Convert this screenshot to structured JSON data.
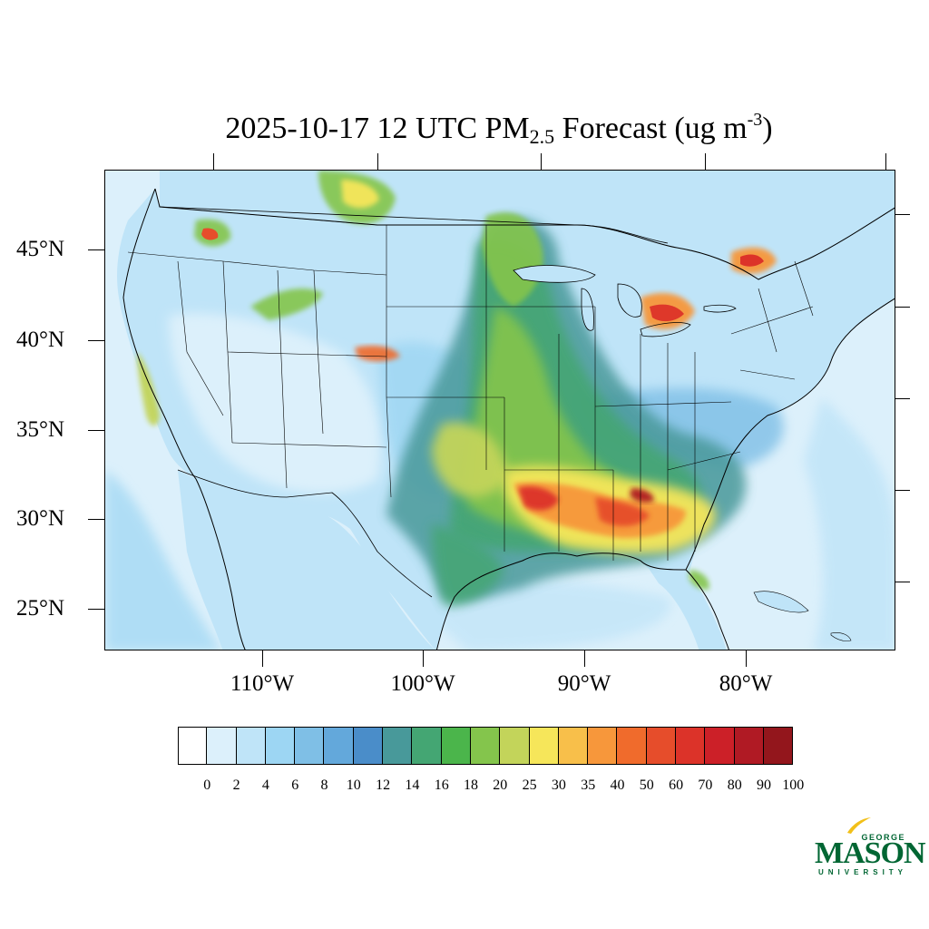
{
  "title": {
    "prefix": "2025-10-17 12 UTC PM",
    "subscript": "2.5",
    "middle": " Forecast (ug m",
    "superscript": "-3",
    "suffix": ")"
  },
  "map": {
    "lat_labels": [
      "45°N",
      "40°N",
      "35°N",
      "30°N",
      "25°N"
    ],
    "lon_labels": [
      "110°W",
      "100°W",
      "90°W",
      "80°W"
    ],
    "ocean_color": "#dcf0fb",
    "land_color": "#bfe4f8",
    "border_color": "#000000",
    "features": [
      {
        "name": "pacific-northwest-smoke",
        "level": 16
      },
      {
        "name": "canada-fire-plume",
        "level": 18
      },
      {
        "name": "northern-plains-plume",
        "level": 20
      },
      {
        "name": "mississippi-valley-plume",
        "level": 25
      },
      {
        "name": "lower-mississippi-hotspot",
        "level": 70
      },
      {
        "name": "gulf-coast-hotspot",
        "level": 60
      },
      {
        "name": "lake-erie-hotspot",
        "level": 60
      },
      {
        "name": "saint-lawrence-hotspot",
        "level": 50
      },
      {
        "name": "central-california-valley",
        "level": 20
      }
    ]
  },
  "colorbar": {
    "labels": [
      "0",
      "2",
      "4",
      "6",
      "8",
      "10",
      "12",
      "14",
      "16",
      "18",
      "20",
      "25",
      "30",
      "35",
      "40",
      "50",
      "60",
      "70",
      "80",
      "90",
      "100"
    ],
    "colors": [
      "#ffffff",
      "#dcf0fb",
      "#bfe4f8",
      "#9dd6f3",
      "#7fbfe6",
      "#63a8db",
      "#4a8dc9",
      "#48999a",
      "#44a673",
      "#4bb54b",
      "#84c54c",
      "#c3d45a",
      "#f6e65a",
      "#f8bf4a",
      "#f7973b",
      "#f06b2c",
      "#e64d2b",
      "#dc3329",
      "#cc2028",
      "#b01a24",
      "#93161c"
    ]
  },
  "logo": {
    "george": "GEORGE",
    "mason": "MASON",
    "university": "UNIVERSITY",
    "color": "#006633",
    "accent": "#f2c019"
  }
}
